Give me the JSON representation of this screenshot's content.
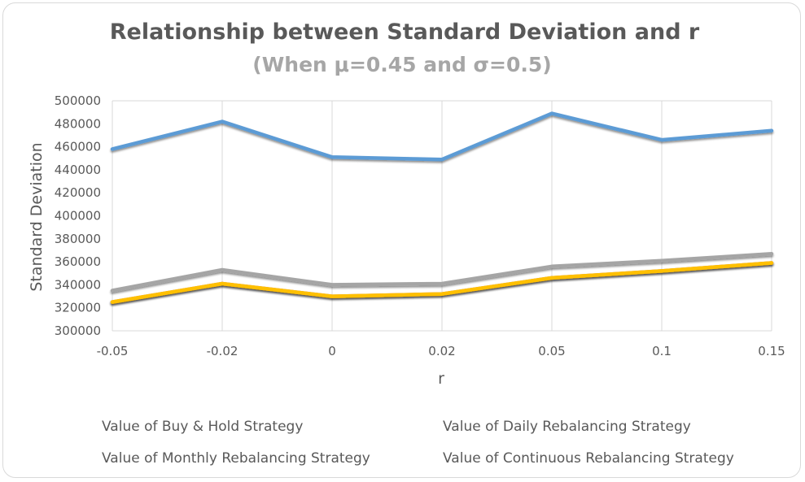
{
  "chart_data": {
    "type": "line",
    "title": "Relationship between Standard Deviation and r",
    "subtitle": "(When μ=0.45 and σ=0.5)",
    "xlabel": "r",
    "ylabel": "Standard Deviation",
    "categories": [
      "-0.05",
      "-0.02",
      "0",
      "0.02",
      "0.05",
      "0.1",
      "0.15"
    ],
    "ylim": [
      300000,
      500000
    ],
    "yticks": [
      300000,
      320000,
      340000,
      360000,
      380000,
      400000,
      420000,
      440000,
      460000,
      480000,
      500000
    ],
    "grid": "vertical",
    "legend_position": "bottom",
    "series": [
      {
        "name": "Value of Buy & Hold Strategy",
        "color": "#5b9bd5",
        "values": [
          458000,
          482000,
          451000,
          449000,
          489000,
          466000,
          474000
        ]
      },
      {
        "name": "Value of Daily Rebalancing Strategy",
        "color": "#ed7d31",
        "values": [
          325000,
          341000,
          330000,
          332000,
          346000,
          352000,
          359000
        ]
      },
      {
        "name": "Value of Monthly Rebalancing Strategy",
        "color": "#a5a5a5",
        "values": [
          335000,
          353000,
          340000,
          341000,
          356000,
          361000,
          367000
        ]
      },
      {
        "name": "Value of Continuous Rebalancing Strategy",
        "color": "#ffc000",
        "values": [
          325000,
          341000,
          330000,
          332000,
          346000,
          352000,
          359000
        ]
      }
    ]
  }
}
